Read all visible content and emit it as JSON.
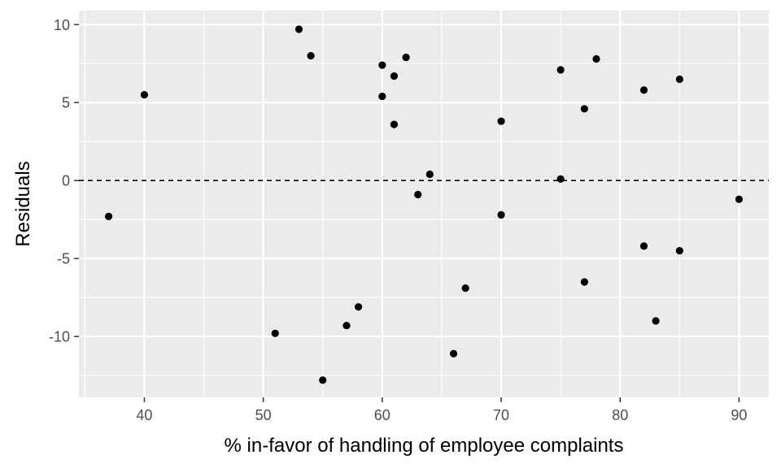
{
  "chart_data": {
    "type": "scatter",
    "xlabel": "% in-favor of handling of employee complaints",
    "ylabel": "Residuals",
    "xlim": [
      34.5,
      92.5
    ],
    "ylim": [
      -13.9,
      10.9
    ],
    "x_ticks": [
      40,
      50,
      60,
      70,
      80,
      90
    ],
    "x_tick_labels": [
      "40",
      "50",
      "60",
      "70",
      "80",
      "90"
    ],
    "y_ticks": [
      -10,
      -5,
      0,
      5,
      10
    ],
    "y_tick_labels": [
      "-10",
      "-5",
      "0",
      "5",
      "10"
    ],
    "reference_line": {
      "y": 0,
      "style": "dashed"
    },
    "grid": true,
    "colors": {
      "panel": "#ebebeb",
      "grid": "#ffffff",
      "point": "#000000"
    },
    "points": [
      {
        "x": 37,
        "y": -2.3
      },
      {
        "x": 40,
        "y": 5.5
      },
      {
        "x": 51,
        "y": -9.8
      },
      {
        "x": 53,
        "y": 9.7
      },
      {
        "x": 54,
        "y": 8.0
      },
      {
        "x": 55,
        "y": -12.8
      },
      {
        "x": 57,
        "y": -9.3
      },
      {
        "x": 58,
        "y": -8.1
      },
      {
        "x": 60,
        "y": 7.4
      },
      {
        "x": 60,
        "y": 5.4
      },
      {
        "x": 61,
        "y": 6.7
      },
      {
        "x": 61,
        "y": 3.6
      },
      {
        "x": 62,
        "y": 7.9
      },
      {
        "x": 63,
        "y": -0.9
      },
      {
        "x": 64,
        "y": 0.4
      },
      {
        "x": 66,
        "y": -11.1
      },
      {
        "x": 67,
        "y": -6.9
      },
      {
        "x": 70,
        "y": 3.8
      },
      {
        "x": 70,
        "y": -2.2
      },
      {
        "x": 75,
        "y": 7.1
      },
      {
        "x": 75,
        "y": 0.1
      },
      {
        "x": 77,
        "y": 4.6
      },
      {
        "x": 77,
        "y": -6.5
      },
      {
        "x": 78,
        "y": 7.8
      },
      {
        "x": 82,
        "y": 5.8
      },
      {
        "x": 82,
        "y": -4.2
      },
      {
        "x": 83,
        "y": -9.0
      },
      {
        "x": 85,
        "y": 6.5
      },
      {
        "x": 85,
        "y": -4.5
      },
      {
        "x": 90,
        "y": -1.2
      }
    ]
  }
}
